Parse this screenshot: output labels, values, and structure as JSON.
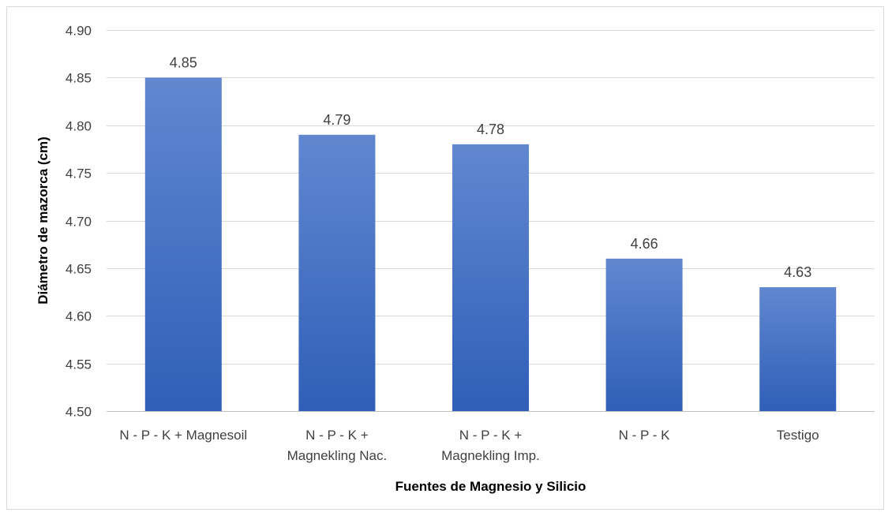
{
  "chart_data": {
    "type": "bar",
    "title": "",
    "xlabel": "Fuentes de Magnesio y Silicio",
    "ylabel": "Diámetro de mazorca (cm)",
    "categories": [
      [
        "N - P - K + Magnesoil"
      ],
      [
        "N - P - K +",
        "Magnekling Nac."
      ],
      [
        "N - P - K +",
        "Magnekling Imp."
      ],
      [
        "N - P - K"
      ],
      [
        "Testigo"
      ]
    ],
    "values": [
      4.85,
      4.79,
      4.78,
      4.66,
      4.63
    ],
    "value_labels": [
      "4.85",
      "4.79",
      "4.78",
      "4.66",
      "4.63"
    ],
    "ylim": [
      4.5,
      4.9
    ],
    "yticks": [
      "4.50",
      "4.55",
      "4.60",
      "4.65",
      "4.70",
      "4.75",
      "4.80",
      "4.85",
      "4.90"
    ],
    "grid": true,
    "legend": "none",
    "colors": {
      "bar_top": "#6187d0",
      "bar_bottom": "#2f5fb8",
      "grid": "#d9d9d9",
      "text": "#404040"
    }
  }
}
